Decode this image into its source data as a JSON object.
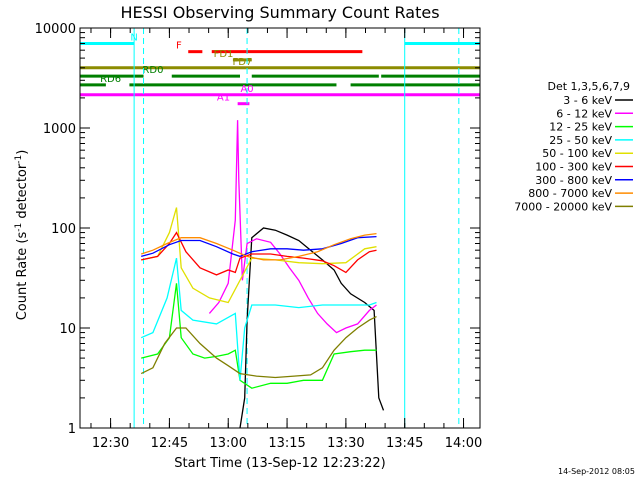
{
  "chart_data": {
    "type": "line",
    "title": "HESSI Observing Summary Count Rates",
    "xlabel": "Start Time (13-Sep-12 12:23:22)",
    "ylabel_main": "Count Rate (s",
    "ylabel_sup1": "-1",
    "ylabel_mid": " detector",
    "ylabel_sup2": "-1",
    "ylabel_end": ")",
    "x_start_label": "12:23:22",
    "x_range_min": [
      12.37,
      14.07
    ],
    "ylim": [
      1,
      10000
    ],
    "y_scale": "log",
    "x_ticks": [
      {
        "label": "12:30",
        "min": 12.5
      },
      {
        "label": "12:45",
        "min": 12.75
      },
      {
        "label": "13:00",
        "min": 13.0
      },
      {
        "label": "13:15",
        "min": 13.25
      },
      {
        "label": "13:30",
        "min": 13.5
      },
      {
        "label": "13:45",
        "min": 13.75
      },
      {
        "label": "14:00",
        "min": 14.0
      }
    ],
    "y_ticks": [
      {
        "label": "1",
        "v": 1
      },
      {
        "label": "10",
        "v": 10
      },
      {
        "label": "100",
        "v": 100
      },
      {
        "label": "1000",
        "v": 1000
      },
      {
        "label": "10000",
        "v": 10000
      }
    ],
    "legend_title": "Det 1,3,5,6,7,9",
    "legend_placement": "right",
    "series": [
      {
        "name": "3 - 6 keV",
        "color": "#000000",
        "points": [
          [
            13.05,
            1
          ],
          [
            13.07,
            2
          ],
          [
            13.08,
            12
          ],
          [
            13.1,
            80
          ],
          [
            13.15,
            100
          ],
          [
            13.2,
            95
          ],
          [
            13.25,
            85
          ],
          [
            13.3,
            75
          ],
          [
            13.35,
            60
          ],
          [
            13.4,
            48
          ],
          [
            13.45,
            38
          ],
          [
            13.48,
            28
          ],
          [
            13.52,
            22
          ],
          [
            13.58,
            18
          ],
          [
            13.62,
            15
          ],
          [
            13.64,
            2
          ],
          [
            13.66,
            1.5
          ]
        ]
      },
      {
        "name": "6 - 12 keV",
        "color": "#ff00ff",
        "points": [
          [
            12.92,
            14
          ],
          [
            12.96,
            18
          ],
          [
            13.0,
            28
          ],
          [
            13.03,
            120
          ],
          [
            13.04,
            1200
          ],
          [
            13.045,
            300
          ],
          [
            13.06,
            30
          ],
          [
            13.08,
            70
          ],
          [
            13.12,
            78
          ],
          [
            13.18,
            72
          ],
          [
            13.22,
            55
          ],
          [
            13.26,
            40
          ],
          [
            13.3,
            30
          ],
          [
            13.34,
            20
          ],
          [
            13.38,
            14
          ],
          [
            13.42,
            11
          ],
          [
            13.46,
            9
          ],
          [
            13.5,
            10
          ],
          [
            13.55,
            11
          ],
          [
            13.6,
            15
          ],
          [
            13.63,
            17
          ]
        ]
      },
      {
        "name": "12 - 25 keV",
        "color": "#00ff00",
        "points": [
          [
            12.63,
            5
          ],
          [
            12.7,
            5.5
          ],
          [
            12.75,
            8
          ],
          [
            12.78,
            28
          ],
          [
            12.8,
            8
          ],
          [
            12.85,
            5.5
          ],
          [
            12.9,
            5
          ],
          [
            12.95,
            5.2
          ],
          [
            13.0,
            5.5
          ],
          [
            13.03,
            6
          ],
          [
            13.05,
            3
          ],
          [
            13.1,
            2.5
          ],
          [
            13.18,
            2.8
          ],
          [
            13.25,
            2.8
          ],
          [
            13.32,
            3
          ],
          [
            13.4,
            3
          ],
          [
            13.45,
            5.5
          ],
          [
            13.52,
            5.8
          ],
          [
            13.58,
            6
          ],
          [
            13.63,
            6
          ]
        ]
      },
      {
        "name": "25 - 50 keV",
        "color": "#00ffff",
        "points": [
          [
            12.63,
            8
          ],
          [
            12.68,
            9
          ],
          [
            12.74,
            20
          ],
          [
            12.78,
            50
          ],
          [
            12.8,
            15
          ],
          [
            12.85,
            12
          ],
          [
            12.95,
            11
          ],
          [
            13.03,
            14
          ],
          [
            13.05,
            3
          ],
          [
            13.07,
            10
          ],
          [
            13.1,
            17
          ],
          [
            13.2,
            17
          ],
          [
            13.3,
            16
          ],
          [
            13.4,
            17
          ],
          [
            13.5,
            17
          ],
          [
            13.6,
            17
          ],
          [
            13.63,
            18
          ]
        ]
      },
      {
        "name": "50 - 100 keV",
        "color": "#e0e000",
        "points": [
          [
            12.63,
            48
          ],
          [
            12.7,
            52
          ],
          [
            12.75,
            90
          ],
          [
            12.78,
            160
          ],
          [
            12.8,
            40
          ],
          [
            12.85,
            25
          ],
          [
            12.92,
            20
          ],
          [
            13.0,
            18
          ],
          [
            13.05,
            30
          ],
          [
            13.1,
            50
          ],
          [
            13.2,
            48
          ],
          [
            13.3,
            45
          ],
          [
            13.4,
            44
          ],
          [
            13.5,
            45
          ],
          [
            13.58,
            62
          ],
          [
            13.63,
            65
          ]
        ]
      },
      {
        "name": "100 - 300 keV",
        "color": "#ff0000",
        "points": [
          [
            12.63,
            48
          ],
          [
            12.7,
            52
          ],
          [
            12.75,
            70
          ],
          [
            12.78,
            90
          ],
          [
            12.82,
            58
          ],
          [
            12.88,
            40
          ],
          [
            12.95,
            34
          ],
          [
            13.0,
            38
          ],
          [
            13.03,
            36
          ],
          [
            13.05,
            50
          ],
          [
            13.1,
            55
          ],
          [
            13.18,
            55
          ],
          [
            13.25,
            52
          ],
          [
            13.32,
            50
          ],
          [
            13.4,
            47
          ],
          [
            13.45,
            42
          ],
          [
            13.5,
            36
          ],
          [
            13.55,
            48
          ],
          [
            13.6,
            58
          ],
          [
            13.63,
            60
          ]
        ]
      },
      {
        "name": "300 - 800 keV",
        "color": "#0000ff",
        "points": [
          [
            12.63,
            52
          ],
          [
            12.68,
            56
          ],
          [
            12.75,
            68
          ],
          [
            12.8,
            75
          ],
          [
            12.88,
            75
          ],
          [
            12.95,
            65
          ],
          [
            13.02,
            55
          ],
          [
            13.05,
            52
          ],
          [
            13.1,
            58
          ],
          [
            13.18,
            62
          ],
          [
            13.25,
            62
          ],
          [
            13.32,
            60
          ],
          [
            13.4,
            62
          ],
          [
            13.48,
            70
          ],
          [
            13.55,
            80
          ],
          [
            13.63,
            82
          ]
        ]
      },
      {
        "name": "800 - 7000 keV",
        "color": "#ff8c00",
        "points": [
          [
            12.63,
            55
          ],
          [
            12.68,
            60
          ],
          [
            12.74,
            70
          ],
          [
            12.8,
            80
          ],
          [
            12.88,
            80
          ],
          [
            12.95,
            70
          ],
          [
            13.02,
            60
          ],
          [
            13.08,
            52
          ],
          [
            13.15,
            48
          ],
          [
            13.22,
            48
          ],
          [
            13.3,
            52
          ],
          [
            13.38,
            58
          ],
          [
            13.45,
            68
          ],
          [
            13.52,
            78
          ],
          [
            13.58,
            85
          ],
          [
            13.63,
            88
          ]
        ]
      },
      {
        "name": "7000 - 20000 keV",
        "color": "#7f7f00",
        "points": [
          [
            12.63,
            3.5
          ],
          [
            12.68,
            4
          ],
          [
            12.73,
            7
          ],
          [
            12.78,
            10
          ],
          [
            12.82,
            10
          ],
          [
            12.88,
            7
          ],
          [
            12.95,
            5
          ],
          [
            13.0,
            4.2
          ],
          [
            13.05,
            3.5
          ],
          [
            13.12,
            3.3
          ],
          [
            13.2,
            3.2
          ],
          [
            13.28,
            3.3
          ],
          [
            13.35,
            3.4
          ],
          [
            13.4,
            4
          ],
          [
            13.45,
            6
          ],
          [
            13.5,
            8
          ],
          [
            13.55,
            10
          ],
          [
            13.6,
            12
          ],
          [
            13.63,
            13
          ]
        ]
      }
    ],
    "flags": [
      {
        "label": "N",
        "color": "#00ffff",
        "label_min": 12.6,
        "segments": [
          [
            12.37,
            12.6
          ],
          [
            13.75,
            14.07
          ]
        ],
        "v": 7000
      },
      {
        "label": "F",
        "color": "#ff0000",
        "label_min": 12.79,
        "segments": [
          [
            12.83,
            12.89
          ],
          [
            12.93,
            13.57
          ]
        ],
        "v": 5800
      },
      {
        "label": "FD1",
        "color": "#8c8c00",
        "label_min": 12.98,
        "segments": [
          [
            13.02,
            13.1
          ]
        ],
        "v": 4800
      },
      {
        "label": "FD7",
        "color": "#8c8c00",
        "label_min": 13.06,
        "segments": [
          [
            12.37,
            14.07
          ]
        ],
        "v": 4000
      },
      {
        "label": "RD0",
        "color": "#007f00",
        "label_min": 12.68,
        "segments": [
          [
            12.37,
            12.64
          ],
          [
            12.76,
            13.05
          ],
          [
            13.1,
            13.64
          ],
          [
            13.65,
            14.07
          ]
        ],
        "v": 3300
      },
      {
        "label": "RD6",
        "color": "#007f00",
        "label_min": 12.5,
        "segments": [
          [
            12.37,
            12.48
          ],
          [
            12.58,
            13.46
          ],
          [
            13.52,
            14.07
          ]
        ],
        "v": 2700
      },
      {
        "label": "A0",
        "color": "#ff00ff",
        "label_min": 13.08,
        "segments": [
          [
            12.37,
            14.07
          ]
        ],
        "v": 2150
      },
      {
        "label": "A1",
        "color": "#ff00ff",
        "label_min": 12.98,
        "segments": [
          [
            13.04,
            13.09
          ]
        ],
        "v": 1750
      }
    ],
    "vlines_solid": [
      {
        "min": 12.6,
        "color": "#00ffff"
      },
      {
        "min": 13.75,
        "color": "#00ffff"
      }
    ],
    "vlines_dashed": [
      {
        "min": 12.37,
        "color": "#00ffff"
      },
      {
        "min": 12.64,
        "color": "#00ffff"
      },
      {
        "min": 13.08,
        "color": "#00ffff"
      },
      {
        "min": 13.98,
        "color": "#00ffff"
      }
    ]
  },
  "timestamp": "14-Sep-2012 08:05"
}
